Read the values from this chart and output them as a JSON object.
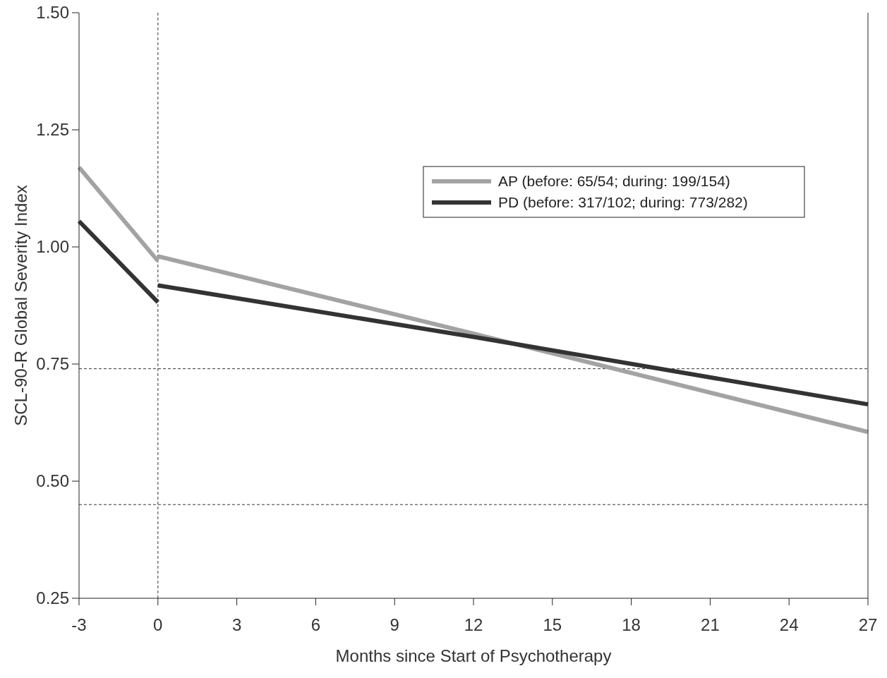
{
  "chart_data": {
    "type": "line",
    "xlabel": "Months since Start of Psychotherapy",
    "ylabel": "SCL-90-R Global Severity Index",
    "series": [
      {
        "name": "AP (before: 65/54; during: 199/154)",
        "color": "#a3a3a3",
        "x": [
          0,
          12,
          27
        ],
        "values": [
          0.98,
          0.815,
          0.605
        ]
      },
      {
        "name": "PD (before: 317/102; during: 773/282)",
        "color": "#333333",
        "x": [
          0,
          12,
          27
        ],
        "values": [
          0.918,
          0.808,
          0.664
        ]
      },
      {
        "color": "#a3a3a3",
        "x": [
          -3,
          0
        ],
        "values": [
          1.17,
          0.97
        ]
      },
      {
        "color": "#333333",
        "x": [
          -3,
          0
        ],
        "values": [
          1.055,
          0.882
        ]
      }
    ],
    "xlim": [
      -3,
      27
    ],
    "xticks": [
      -3,
      0,
      3,
      6,
      9,
      12,
      15,
      18,
      21,
      24,
      27
    ],
    "ylim": [
      0.25,
      1.5
    ],
    "yticks": [
      0.25,
      {
        "value": 0.5,
        "label": "0.50"
      },
      0.75,
      {
        "value": 1.0,
        "label": "1.00"
      },
      1.25,
      {
        "value": 1.5,
        "label": "1.50"
      }
    ],
    "ref_lines": [
      {
        "axis": "x",
        "value": 0,
        "line_style": "dashed"
      },
      {
        "axis": "y",
        "value": 0.74,
        "line_style": "dashed"
      },
      {
        "axis": "y",
        "value": 0.45,
        "line_style": "dashed"
      }
    ],
    "legend": "top right",
    "grid": false,
    "marker": "none",
    "line_style": "solid"
  }
}
